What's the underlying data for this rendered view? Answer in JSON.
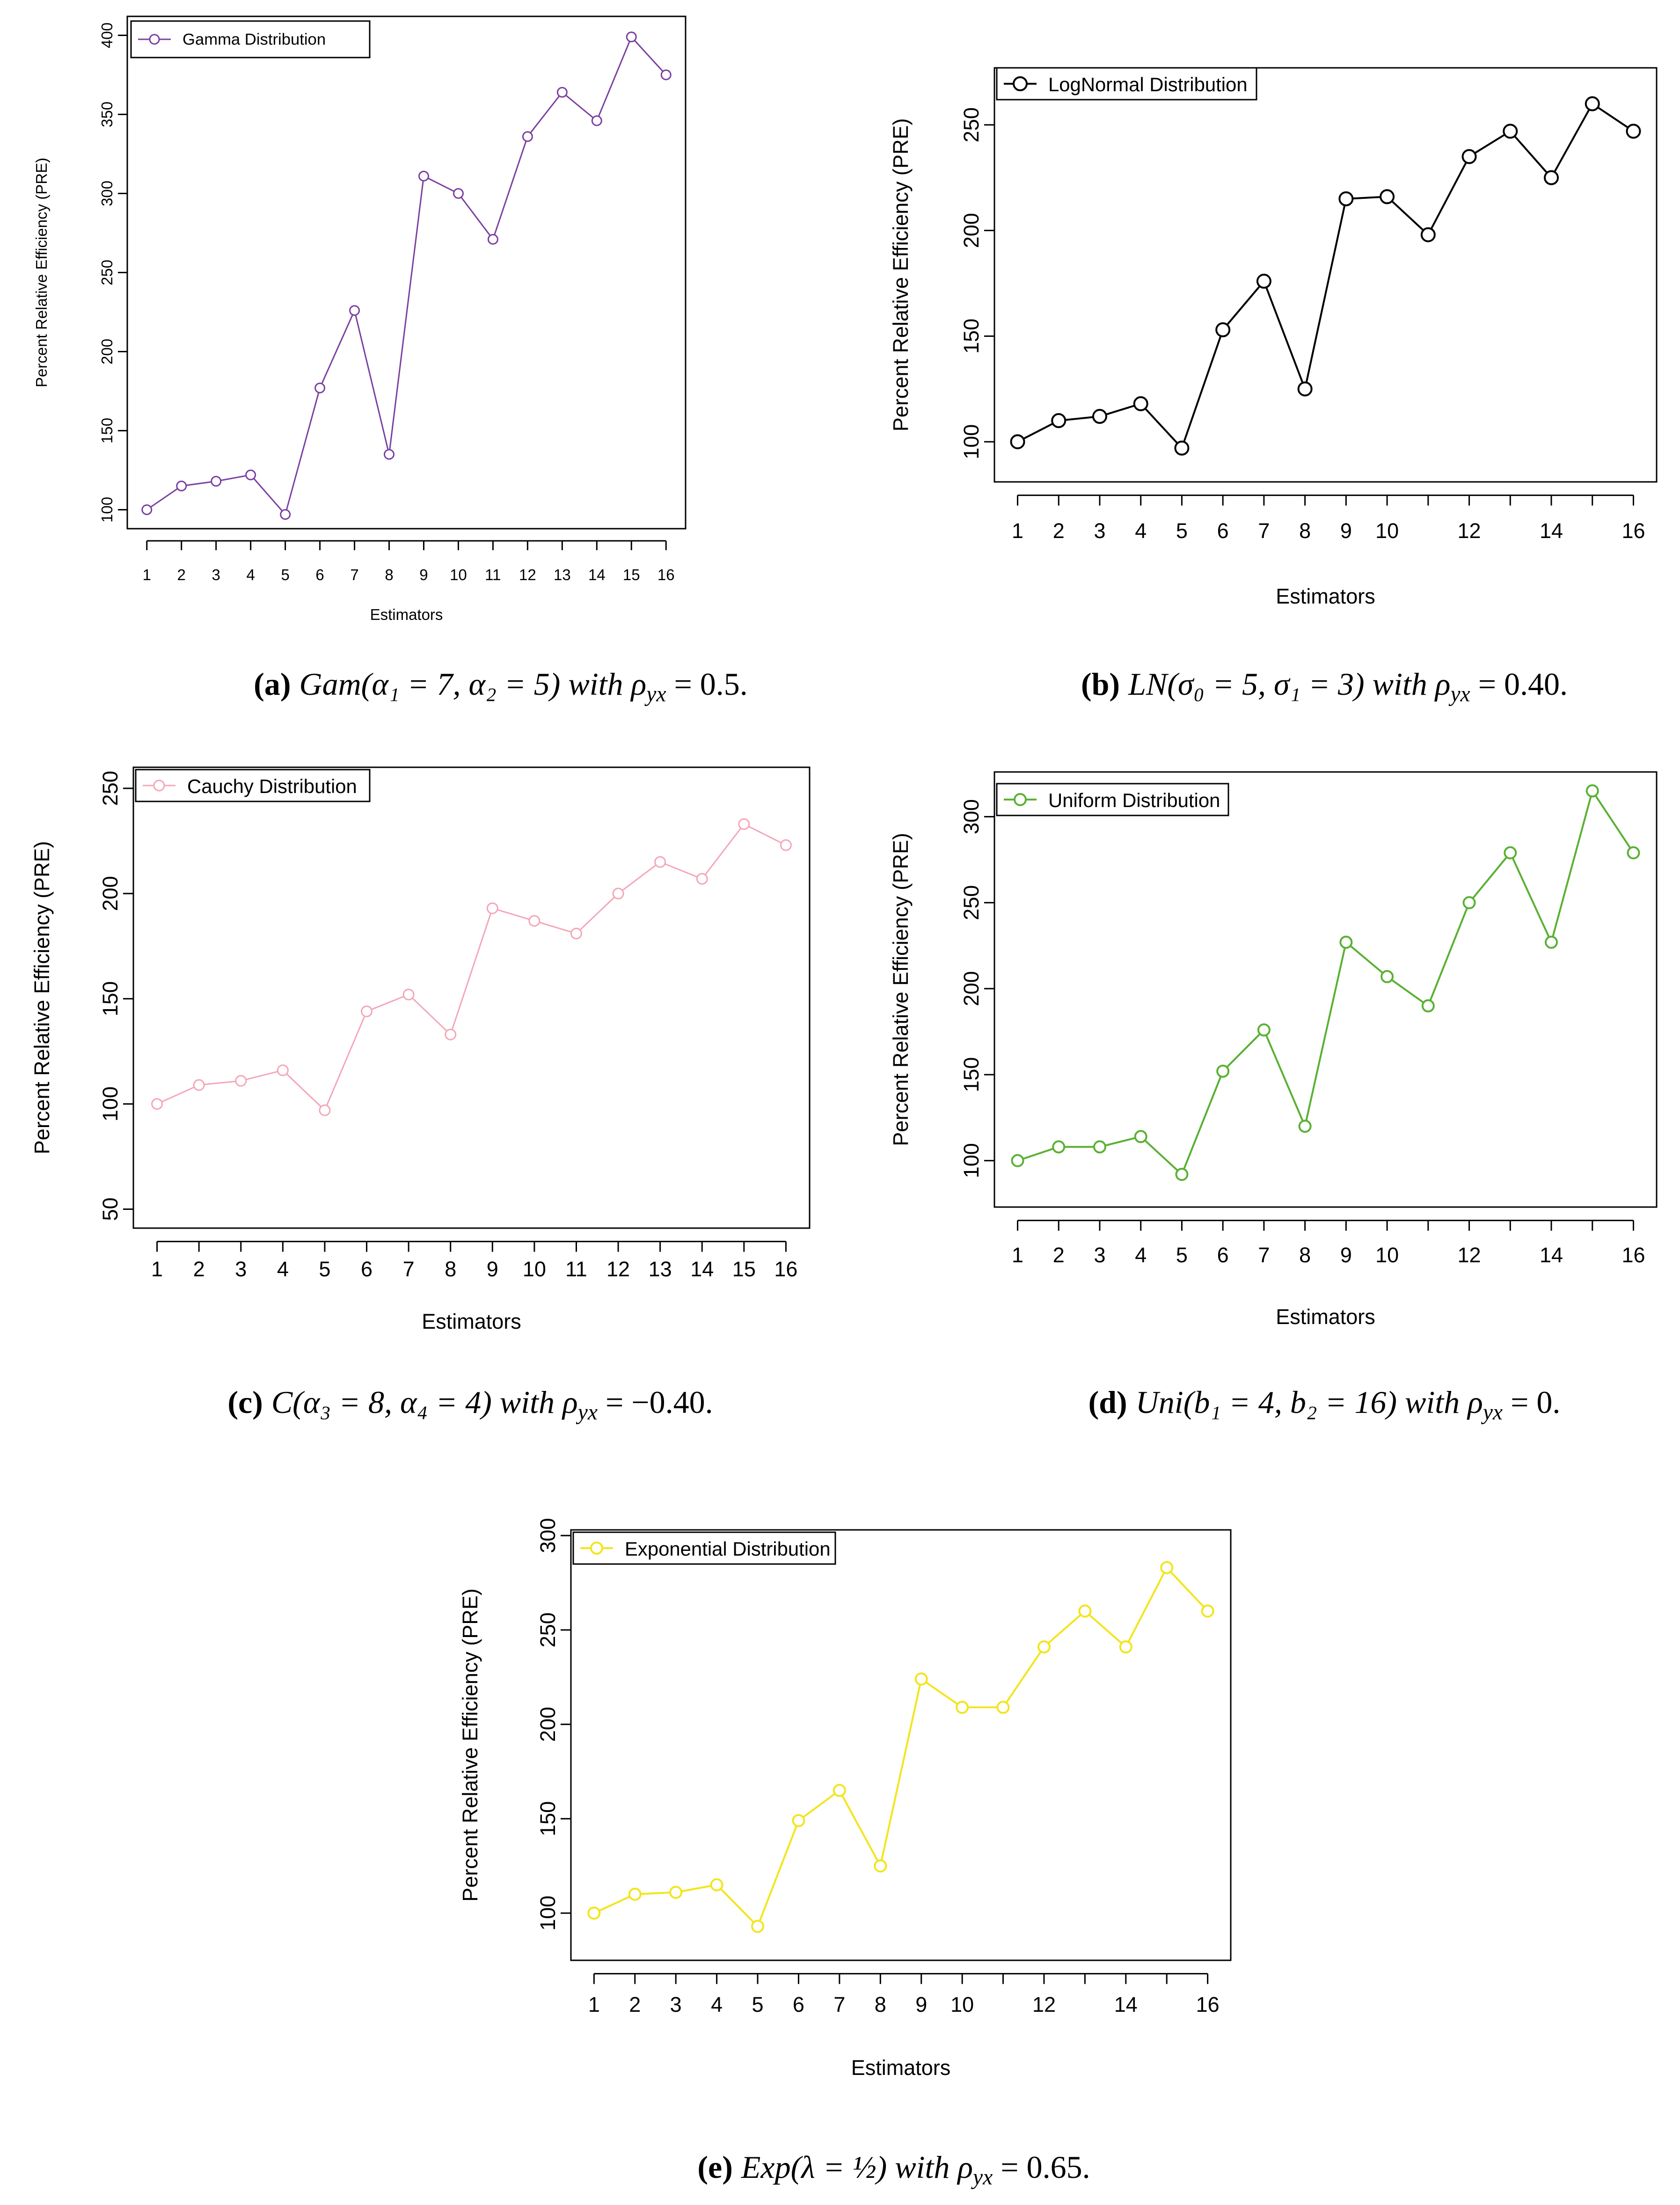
{
  "chart_data": [
    {
      "id": "a",
      "type": "line",
      "xlabel": "Estimators",
      "ylabel": "Percent Relative Efficiency (PRE)",
      "x": [
        1,
        2,
        3,
        4,
        5,
        6,
        7,
        8,
        9,
        10,
        11,
        12,
        13,
        14,
        15,
        16
      ],
      "x_ticks": [
        1,
        2,
        3,
        4,
        5,
        6,
        7,
        8,
        9,
        10,
        11,
        12,
        13,
        14,
        15,
        16
      ],
      "ylim": [
        88,
        412
      ],
      "y_ticks": [
        100,
        150,
        200,
        250,
        300,
        350,
        400
      ],
      "series": [
        {
          "name": "Gamma Distribution",
          "color": "#7B3FA0",
          "values": [
            100,
            115,
            118,
            122,
            97,
            177,
            226,
            135,
            311,
            300,
            271,
            336,
            364,
            346,
            399,
            375
          ]
        }
      ],
      "caption": {
        "label": "(a)",
        "text": "Gam(α₁ = 7, α₂ = 5) with ρ",
        "sub": "yx",
        "tail": " = 0.5."
      }
    },
    {
      "id": "b",
      "type": "line",
      "xlabel": "Estimators",
      "ylabel": "Percent Relative Efficiency (PRE)",
      "x": [
        1,
        2,
        3,
        4,
        5,
        6,
        7,
        8,
        9,
        10,
        11,
        12,
        13,
        14,
        15,
        16
      ],
      "x_ticks": [
        1,
        2,
        3,
        4,
        5,
        6,
        7,
        8,
        9,
        10,
        12,
        14,
        16
      ],
      "ylim": [
        81,
        277
      ],
      "y_ticks": [
        100,
        150,
        200,
        250
      ],
      "series": [
        {
          "name": "LogNormal Distribution",
          "color": "#000000",
          "values": [
            100,
            110,
            112,
            118,
            97,
            153,
            176,
            125,
            215,
            216,
            198,
            235,
            247,
            225,
            260,
            247
          ]
        }
      ],
      "caption": {
        "label": "(b)",
        "text": "LN(σ₀ = 5, σ₁ = 3) with ρ",
        "sub": "yx",
        "tail": " = 0.40."
      }
    },
    {
      "id": "c",
      "type": "line",
      "xlabel": "Estimators",
      "ylabel": "Percent Relative Efficiency (PRE)",
      "x": [
        1,
        2,
        3,
        4,
        5,
        6,
        7,
        8,
        9,
        10,
        11,
        12,
        13,
        14,
        15,
        16
      ],
      "x_ticks": [
        1,
        2,
        3,
        4,
        5,
        6,
        7,
        8,
        9,
        10,
        11,
        12,
        13,
        14,
        15,
        16
      ],
      "ylim": [
        41,
        260
      ],
      "y_ticks": [
        50,
        100,
        150,
        200,
        250
      ],
      "series": [
        {
          "name": "Cauchy Distribution",
          "color": "#F4A6B8",
          "values": [
            100,
            109,
            111,
            116,
            97,
            144,
            152,
            133,
            193,
            187,
            181,
            200,
            215,
            207,
            233,
            223
          ]
        }
      ],
      "caption": {
        "label": "(c)",
        "text": "C(α₃ = 8, α₄ = 4) with ρ",
        "sub": "yx",
        "tail": " = −0.40."
      }
    },
    {
      "id": "d",
      "type": "line",
      "xlabel": "Estimators",
      "ylabel": "Percent Relative Efficiency (PRE)",
      "x": [
        1,
        2,
        3,
        4,
        5,
        6,
        7,
        8,
        9,
        10,
        11,
        12,
        13,
        14,
        15,
        16
      ],
      "x_ticks": [
        1,
        2,
        3,
        4,
        5,
        6,
        7,
        8,
        9,
        10,
        12,
        14,
        16
      ],
      "ylim": [
        73,
        326
      ],
      "y_ticks": [
        100,
        150,
        200,
        250,
        300
      ],
      "series": [
        {
          "name": "Uniform Distribution",
          "color": "#5AB033",
          "values": [
            100,
            108,
            108,
            114,
            92,
            152,
            176,
            120,
            227,
            207,
            190,
            250,
            279,
            227,
            315,
            279
          ]
        }
      ],
      "caption": {
        "label": "(d)",
        "text": "Uni(b₁ = 4, b₂ = 16) with ρ",
        "sub": "yx",
        "tail": " = 0."
      }
    },
    {
      "id": "e",
      "type": "line",
      "xlabel": "Estimators",
      "ylabel": "Percent Relative Efficiency (PRE)",
      "x": [
        1,
        2,
        3,
        4,
        5,
        6,
        7,
        8,
        9,
        10,
        11,
        12,
        13,
        14,
        15,
        16
      ],
      "x_ticks": [
        1,
        2,
        3,
        4,
        5,
        6,
        7,
        8,
        9,
        10,
        12,
        14,
        16
      ],
      "ylim": [
        75,
        303
      ],
      "y_ticks": [
        100,
        150,
        200,
        250,
        300
      ],
      "series": [
        {
          "name": "Exponential Distribution",
          "color": "#F2E51C",
          "values": [
            100,
            110,
            111,
            115,
            93,
            149,
            165,
            125,
            224,
            209,
            209,
            241,
            260,
            241,
            283,
            260
          ]
        }
      ],
      "caption": {
        "label": "(e)",
        "text": "Exp(λ = ½) with ρ",
        "sub": "yx",
        "tail": " = 0.65."
      }
    }
  ]
}
